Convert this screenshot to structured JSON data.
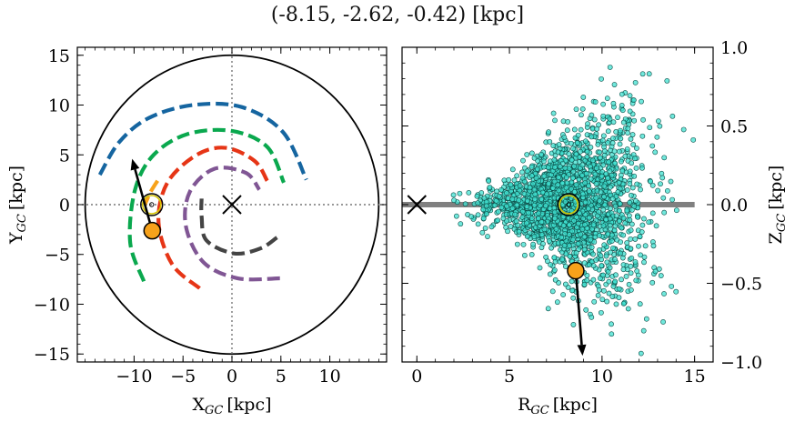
{
  "title": "(-8.15, -2.62, -0.42) [kpc]",
  "chart_data": [
    {
      "type": "line",
      "panel": "left",
      "xlabel_main": "X",
      "xlabel_sub": "GC",
      "xlabel_unit": "[kpc]",
      "ylabel_main": "Y",
      "ylabel_sub": "GC",
      "ylabel_unit": "[kpc]",
      "xlim": [
        -15.8,
        15.8
      ],
      "ylim": [
        -15.8,
        15.8
      ],
      "xticks": [
        -10,
        -5,
        0,
        5,
        10
      ],
      "xtick_labels": [
        "−10",
        "−5",
        "0",
        "5",
        "10"
      ],
      "yticks": [
        -15,
        -10,
        -5,
        0,
        5,
        10,
        15
      ],
      "ytick_labels": [
        "−15",
        "−10",
        "−5",
        "0",
        "5",
        "10",
        "15"
      ],
      "grid": false,
      "boundary_circle_radius": 15,
      "galactic_center": [
        0,
        0
      ],
      "sun": [
        -8.2,
        0.0
      ],
      "object": [
        -8.15,
        -2.62
      ],
      "velocity_arrow_tip": [
        -10.2,
        4.6
      ],
      "spiral_arms": [
        {
          "color": "#1565a0",
          "points": [
            [
              -13.5,
              3.0
            ],
            [
              -11.5,
              6.3
            ],
            [
              -8.5,
              8.7
            ],
            [
              -4.0,
              10.0
            ],
            [
              1.0,
              9.8
            ],
            [
              5.2,
              7.3
            ],
            [
              7.6,
              2.5
            ]
          ]
        },
        {
          "color": "#f7a21b",
          "points": [
            [
              -7.6,
              2.4
            ],
            [
              -8.3,
              1.3
            ],
            [
              -8.9,
              0.0
            ]
          ]
        },
        {
          "color": "#0aa84e",
          "points": [
            [
              -9.0,
              -7.7
            ],
            [
              -10.4,
              -3.8
            ],
            [
              -9.9,
              1.5
            ],
            [
              -8.0,
              5.0
            ],
            [
              -4.5,
              7.1
            ],
            [
              0.0,
              7.4
            ],
            [
              3.6,
              5.8
            ],
            [
              5.3,
              2.2
            ]
          ]
        },
        {
          "color": "#e63516",
          "points": [
            [
              -3.3,
              -8.4
            ],
            [
              -6.1,
              -6.0
            ],
            [
              -7.5,
              -1.8
            ],
            [
              -6.6,
              2.2
            ],
            [
              -3.6,
              5.0
            ],
            [
              -0.6,
              5.7
            ],
            [
              2.3,
              4.4
            ],
            [
              3.6,
              2.4
            ]
          ]
        },
        {
          "color": "#805694",
          "points": [
            [
              4.9,
              -7.4
            ],
            [
              0.6,
              -7.4
            ],
            [
              -2.9,
              -5.8
            ],
            [
              -4.7,
              -2.2
            ],
            [
              -4.3,
              1.3
            ],
            [
              -1.8,
              3.6
            ],
            [
              1.4,
              3.2
            ],
            [
              2.8,
              1.5
            ]
          ]
        },
        {
          "color": "#444444",
          "points": [
            [
              4.6,
              -3.3
            ],
            [
              2.9,
              -4.4
            ],
            [
              0.2,
              -4.9
            ],
            [
              -2.6,
              -3.6
            ],
            [
              -3.1,
              -1.2
            ],
            [
              -3.1,
              0.6
            ]
          ]
        }
      ]
    },
    {
      "type": "scatter",
      "panel": "right",
      "xlabel_main": "R",
      "xlabel_sub": "GC",
      "xlabel_unit": "[kpc]",
      "ylabel_main": "Z",
      "ylabel_sub": "GC",
      "ylabel_unit": "[kpc]",
      "xlim": [
        -0.8,
        16.0
      ],
      "ylim": [
        -1.0,
        1.0
      ],
      "xticks": [
        0,
        5,
        10,
        15
      ],
      "xtick_labels": [
        "0",
        "5",
        "10",
        "15"
      ],
      "yticks": [
        -1.0,
        -0.5,
        0.0,
        0.5,
        1.0
      ],
      "ytick_labels": [
        "−1.0",
        "−0.5",
        "0.0",
        "0.5",
        "1.0"
      ],
      "grid": false,
      "disk_line": [
        [
          -0.8,
          0.0
        ],
        [
          15.0,
          0.0
        ]
      ],
      "galactic_center": [
        0,
        0
      ],
      "sun": [
        8.2,
        0.0
      ],
      "object": [
        8.58,
        -0.42
      ],
      "velocity_arrow_tip": [
        8.95,
        -0.96
      ],
      "stars": {
        "count": 2100,
        "color": "#40e0d0",
        "edge_color": "#0a4a44",
        "center": [
          8.3,
          0.0
        ],
        "note_extent": "R from about 1.5 to 15.5, Z from about -1.0 to 0.97"
      }
    }
  ]
}
